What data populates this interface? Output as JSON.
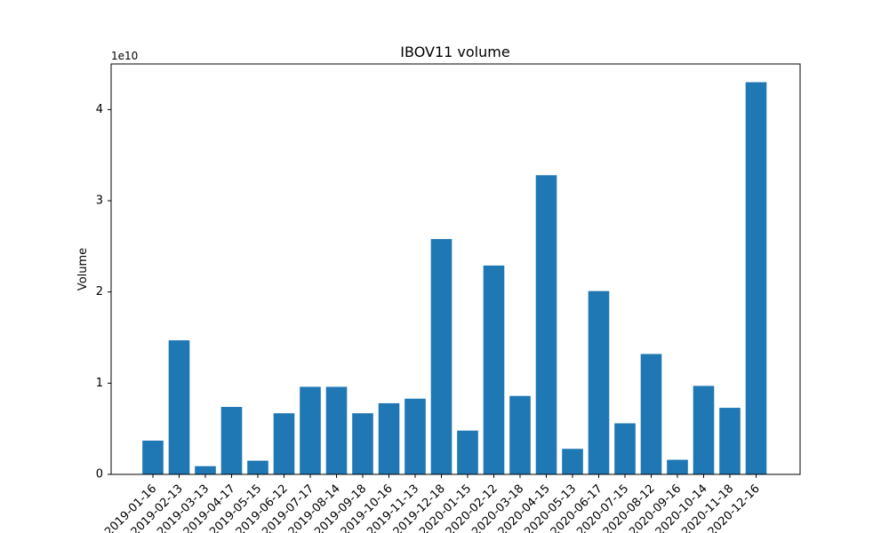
{
  "chart_data": {
    "type": "bar",
    "title": "IBOV11 volume",
    "xlabel": "",
    "ylabel": "Volume",
    "y_offset_label": "1e10",
    "ylim": [
      0,
      4.5
    ],
    "yticks": [
      0,
      1,
      2,
      3,
      4
    ],
    "bar_color": "#1f77b4",
    "grid": false,
    "categories": [
      "2019-01-16",
      "2019-02-13",
      "2019-03-13",
      "2019-04-17",
      "2019-05-15",
      "2019-06-12",
      "2019-07-17",
      "2019-08-14",
      "2019-09-18",
      "2019-10-16",
      "2019-11-13",
      "2019-12-18",
      "2020-01-15",
      "2020-02-12",
      "2020-03-18",
      "2020-04-15",
      "2020-05-13",
      "2020-06-17",
      "2020-07-15",
      "2020-08-12",
      "2020-09-16",
      "2020-10-14",
      "2020-11-18",
      "2020-12-16"
    ],
    "values": [
      0.37,
      1.47,
      0.09,
      0.74,
      0.15,
      0.67,
      0.96,
      0.96,
      0.67,
      0.78,
      0.83,
      2.58,
      0.48,
      2.29,
      0.86,
      3.28,
      0.28,
      2.01,
      0.56,
      1.32,
      0.16,
      0.97,
      0.73,
      4.3
    ]
  }
}
